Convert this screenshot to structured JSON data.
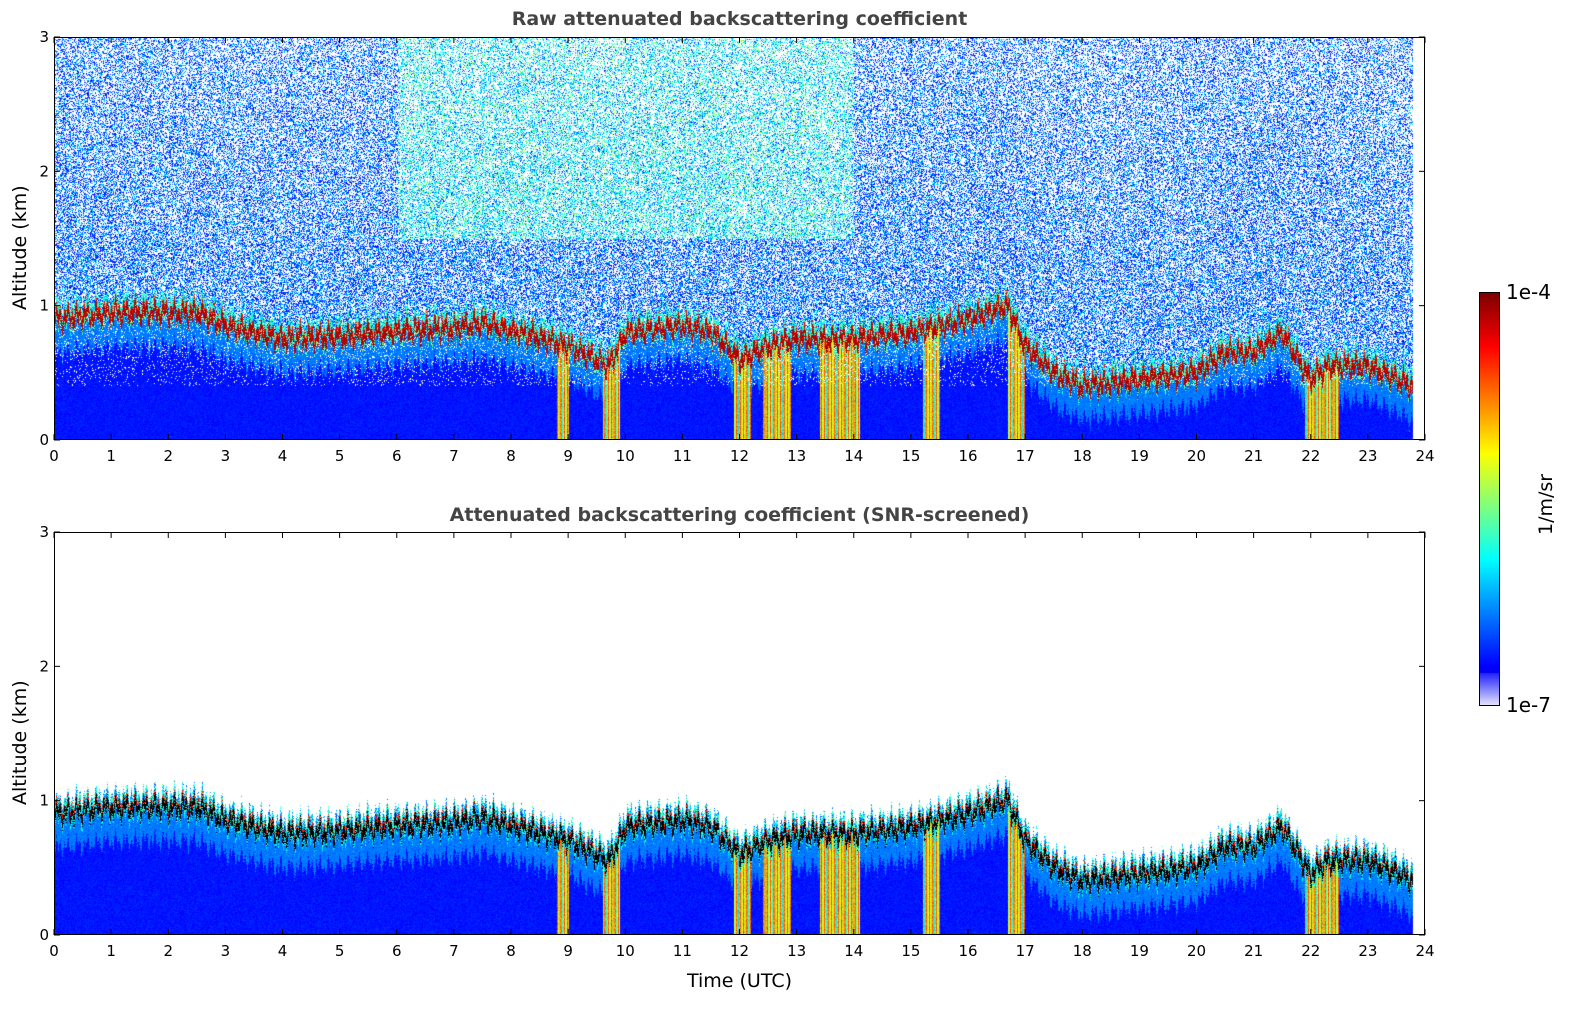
{
  "chart_data": [
    {
      "type": "heatmap",
      "title": "Raw attenuated backscattering coefficient",
      "xlabel": "",
      "ylabel": "Altitude (km)",
      "xlim": [
        0,
        24
      ],
      "ylim": [
        0,
        3
      ],
      "xticks": [
        0,
        1,
        2,
        3,
        4,
        5,
        6,
        7,
        8,
        9,
        10,
        11,
        12,
        13,
        14,
        15,
        16,
        17,
        18,
        19,
        20,
        21,
        22,
        23,
        24
      ],
      "yticks": [
        0,
        1,
        2,
        3
      ],
      "screened": false
    },
    {
      "type": "heatmap",
      "title": "Attenuated backscattering coefficient (SNR-screened)",
      "xlabel": "Time (UTC)",
      "ylabel": "Altitude (km)",
      "xlim": [
        0,
        24
      ],
      "ylim": [
        0,
        3
      ],
      "xticks": [
        0,
        1,
        2,
        3,
        4,
        5,
        6,
        7,
        8,
        9,
        10,
        11,
        12,
        13,
        14,
        15,
        16,
        17,
        18,
        19,
        20,
        21,
        22,
        23,
        24
      ],
      "yticks": [
        0,
        1,
        2,
        3
      ],
      "screened": true
    }
  ],
  "layer_top_km": {
    "time": [
      0,
      1,
      2,
      2.5,
      3,
      4,
      5,
      6,
      7,
      7.5,
      8,
      9,
      9.7,
      10,
      11,
      11.5,
      12,
      12.5,
      13,
      14,
      15,
      16,
      16.7,
      17,
      17.5,
      18,
      19,
      20,
      20.5,
      21,
      21.5,
      22,
      22.3,
      23,
      23.8
    ],
    "height": [
      0.95,
      1.0,
      1.0,
      1.0,
      0.9,
      0.8,
      0.82,
      0.86,
      0.88,
      0.92,
      0.86,
      0.75,
      0.6,
      0.85,
      0.9,
      0.85,
      0.65,
      0.75,
      0.8,
      0.8,
      0.85,
      0.95,
      1.05,
      0.75,
      0.55,
      0.45,
      0.5,
      0.55,
      0.7,
      0.7,
      0.85,
      0.5,
      0.6,
      0.6,
      0.45
    ]
  },
  "precip_events_utc": [
    [
      8.8,
      9.0
    ],
    [
      9.6,
      9.9
    ],
    [
      11.9,
      12.2
    ],
    [
      12.4,
      12.9
    ],
    [
      13.4,
      14.1
    ],
    [
      15.2,
      15.5
    ],
    [
      16.7,
      17.0
    ],
    [
      21.9,
      22.5
    ]
  ],
  "colorbar": {
    "label": "1/m/sr",
    "max_label": "1e-4",
    "min_label": "1e-7",
    "vmin": 1e-07,
    "vmax": 0.0001,
    "colormap": "jet"
  }
}
